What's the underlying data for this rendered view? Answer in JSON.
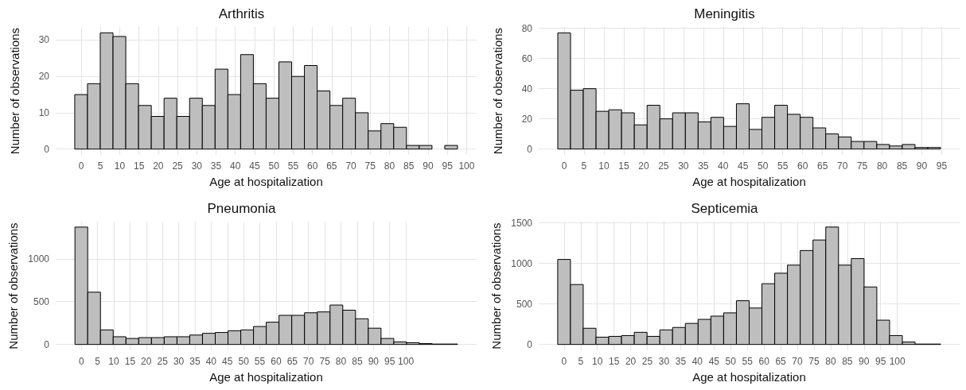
{
  "chart_data": [
    {
      "type": "histogram",
      "title": "Arthritis",
      "xlabel": "Age at hospitalization",
      "ylabel": "Number of observations",
      "color": "#bebebe",
      "grid": true,
      "bins": [
        -1.66,
        1.65,
        4.96,
        8.27,
        11.58,
        14.89,
        18.2,
        21.51,
        24.82,
        28.13,
        31.44,
        34.75,
        38.06,
        41.37,
        44.68,
        47.99,
        51.3,
        54.61,
        57.92,
        61.23,
        64.54,
        67.85,
        71.16,
        74.47,
        77.78,
        81.09,
        84.4,
        87.71,
        91.02,
        94.33,
        97.64
      ],
      "values": [
        15,
        18,
        32,
        31,
        18,
        12,
        9,
        14,
        9,
        14,
        12,
        22,
        15,
        26,
        18,
        14,
        24,
        20,
        23,
        16,
        12,
        14,
        10,
        5,
        7,
        6,
        1,
        1,
        0,
        1
      ],
      "xlim": [
        -6.6,
        102.6
      ],
      "xticks": [
        0,
        5,
        10,
        15,
        20,
        25,
        30,
        35,
        40,
        45,
        50,
        55,
        60,
        65,
        70,
        75,
        80,
        85,
        90,
        95,
        100
      ],
      "ylim": [
        -1.6,
        33.6
      ],
      "yticks": [
        0,
        10,
        20,
        30
      ]
    },
    {
      "type": "histogram",
      "title": "Meningitis",
      "xlabel": "Age at hospitalization",
      "ylabel": "Number of observations",
      "color": "#bebebe",
      "grid": true,
      "bins": [
        -1.6,
        1.61,
        4.82,
        8.03,
        11.24,
        14.45,
        17.66,
        20.87,
        24.08,
        27.29,
        30.5,
        33.71,
        36.92,
        40.13,
        43.34,
        46.55,
        49.76,
        52.97,
        56.18,
        59.39,
        62.6,
        65.81,
        69.02,
        72.23,
        75.44,
        78.65,
        81.86,
        85.07,
        88.28,
        91.49,
        94.7
      ],
      "values": [
        77,
        39,
        40,
        25,
        26,
        24,
        16,
        29,
        20,
        24,
        24,
        18,
        21,
        15,
        30,
        13,
        21,
        29,
        23,
        21,
        14,
        10,
        8,
        5,
        5,
        3,
        2,
        3,
        1,
        1
      ],
      "xlim": [
        -6.4,
        99.5
      ],
      "xticks": [
        0,
        5,
        10,
        15,
        20,
        25,
        30,
        35,
        40,
        45,
        50,
        55,
        60,
        65,
        70,
        75,
        80,
        85,
        90,
        95
      ],
      "ylim": [
        -3.9,
        80.9
      ],
      "yticks": [
        0,
        20,
        40,
        60,
        80
      ]
    },
    {
      "type": "histogram",
      "title": "Pneumonia",
      "xlabel": "Age at hospitalization",
      "ylabel": "Number of observations",
      "color": "#bebebe",
      "grid": true,
      "bins": [
        -1.97,
        1.96,
        5.89,
        9.82,
        13.75,
        17.68,
        21.61,
        25.54,
        29.47,
        33.4,
        37.33,
        41.26,
        45.19,
        49.12,
        53.05,
        56.98,
        60.91,
        64.84,
        68.77,
        72.7,
        76.63,
        80.56,
        84.49,
        88.42,
        92.35,
        96.28,
        100.21,
        104.14,
        108.07,
        112,
        115.93
      ],
      "values": [
        1370,
        610,
        170,
        90,
        70,
        80,
        80,
        90,
        90,
        110,
        130,
        140,
        160,
        170,
        210,
        260,
        340,
        340,
        370,
        380,
        460,
        400,
        300,
        190,
        70,
        30,
        20,
        10,
        5,
        5
      ],
      "xlim": [
        -7.9,
        121.8
      ],
      "xticks": [
        0,
        5,
        10,
        15,
        20,
        25,
        30,
        35,
        40,
        45,
        50,
        55,
        60,
        65,
        70,
        75,
        80,
        85,
        90,
        95,
        100
      ],
      "ylim": [
        -68,
        1434
      ],
      "yticks": [
        0,
        500,
        1000
      ]
    },
    {
      "type": "histogram",
      "title": "Septicemia",
      "xlabel": "Age at hospitalization",
      "ylabel": "Number of observations",
      "color": "#bebebe",
      "grid": true,
      "bins": [
        -1.9,
        1.93,
        5.76,
        9.59,
        13.42,
        17.25,
        21.08,
        24.91,
        28.74,
        32.57,
        36.4,
        40.23,
        44.06,
        47.89,
        51.72,
        55.55,
        59.38,
        63.21,
        67.04,
        70.87,
        74.7,
        78.53,
        82.36,
        86.19,
        90.02,
        93.85,
        97.68,
        101.51,
        105.34,
        109.17,
        113
      ],
      "values": [
        1050,
        740,
        200,
        90,
        100,
        110,
        150,
        100,
        180,
        210,
        260,
        310,
        350,
        390,
        540,
        450,
        750,
        880,
        980,
        1160,
        1290,
        1450,
        980,
        1060,
        710,
        300,
        110,
        30,
        5,
        5
      ],
      "xlim": [
        -7.6,
        118.7
      ],
      "xticks": [
        0,
        5,
        10,
        15,
        20,
        25,
        30,
        35,
        40,
        45,
        50,
        55,
        60,
        65,
        70,
        75,
        80,
        85,
        90,
        95,
        100
      ],
      "ylim": [
        -72,
        1517
      ],
      "yticks": [
        0,
        500,
        1000,
        1500
      ]
    }
  ]
}
